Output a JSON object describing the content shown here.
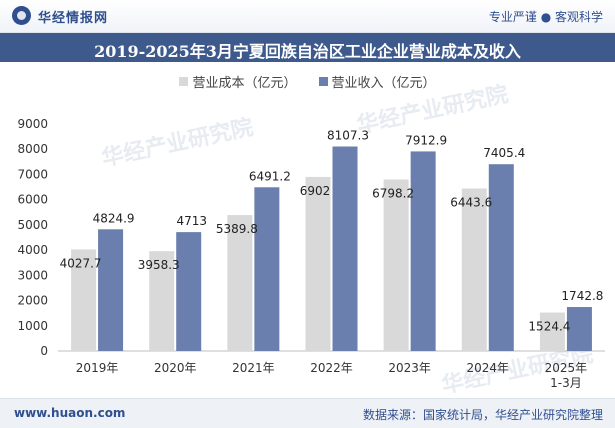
{
  "header": {
    "brand": "华经情报网",
    "slogan": "专业严谨 ● 客观科学"
  },
  "title": "2019-2025年3月宁夏回族自治区工业企业营业成本及收入",
  "legend": {
    "cost": "营业成本（亿元）",
    "revenue": "营业收入（亿元）"
  },
  "watermark": "华经产业研究院",
  "footer": {
    "url": "www.huaon.com",
    "source": "数据来源：国家统计局，华经产业研究院整理"
  },
  "colors": {
    "cost": "#d9d9d9",
    "revenue": "#6a7fad",
    "title_bg": "#3e5a8d"
  },
  "chart_data": {
    "type": "bar",
    "categories": [
      "2019年",
      "2020年",
      "2021年",
      "2022年",
      "2023年",
      "2024年",
      "2025年\n1-3月"
    ],
    "series": [
      {
        "name": "营业成本（亿元）",
        "values": [
          4027.7,
          3958.3,
          5389.8,
          6902,
          6798.2,
          6443.6,
          1524.4
        ]
      },
      {
        "name": "营业收入（亿元）",
        "values": [
          4824.9,
          4713,
          6491.2,
          8107.3,
          7912.9,
          7405.4,
          1742.8
        ]
      }
    ],
    "yticks": [
      0,
      1000,
      2000,
      3000,
      4000,
      5000,
      6000,
      7000,
      8000,
      9000
    ],
    "ylim": [
      0,
      9000
    ],
    "grid": false,
    "legend_position": "top"
  }
}
